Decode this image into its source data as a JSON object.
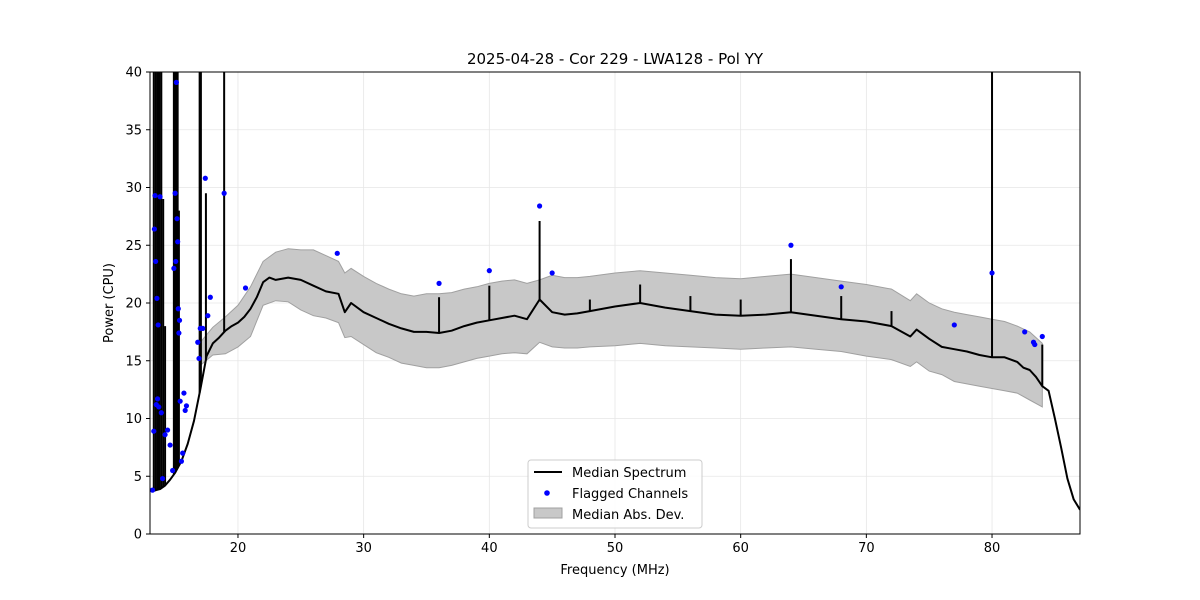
{
  "chart_data": {
    "type": "line",
    "title": "2025-04-28 - Cor 229 - LWA128 - Pol YY",
    "xlabel": "Frequency (MHz)",
    "ylabel": "Power (CPU)",
    "xlim": [
      13,
      87
    ],
    "ylim": [
      0,
      40
    ],
    "xticks": [
      20,
      30,
      40,
      50,
      60,
      70,
      80
    ],
    "xtick_labels": [
      "20",
      "30",
      "40",
      "50",
      "60",
      "70",
      "80"
    ],
    "yticks": [
      0,
      5,
      10,
      15,
      20,
      25,
      30,
      35,
      40
    ],
    "ytick_labels": [
      "0",
      "5",
      "10",
      "15",
      "20",
      "25",
      "30",
      "35",
      "40"
    ],
    "grid": true,
    "legend": {
      "position": "lower-center",
      "entries": [
        "Median Spectrum",
        "Flagged Channels",
        "Median Abs. Dev."
      ]
    },
    "colors": {
      "median_line": "#000000",
      "flagged_points": "#0000ff",
      "mad_band": "#c8c8c8",
      "mad_edge": "#a0a0a0",
      "grid": "#e6e6e6"
    },
    "series": [
      {
        "name": "Median Spectrum",
        "x": [
          13.2,
          13.5,
          13.8,
          14.2,
          14.6,
          15.0,
          15.5,
          16.0,
          16.5,
          17.0,
          17.5,
          18.0,
          18.5,
          19.0,
          19.5,
          20.0,
          20.5,
          21.0,
          21.5,
          22.0,
          22.5,
          23.0,
          24.0,
          25.0,
          26.0,
          27.0,
          28.0,
          28.5,
          29.0,
          30.0,
          31.0,
          32.0,
          33.0,
          34.0,
          35.0,
          36.0,
          37.0,
          38.0,
          39.0,
          40.0,
          41.0,
          42.0,
          43.0,
          44.0,
          45.0,
          46.0,
          47.0,
          48.0,
          50.0,
          52.0,
          54.0,
          56.0,
          58.0,
          60.0,
          62.0,
          64.0,
          66.0,
          68.0,
          70.0,
          72.0,
          73.5,
          74.0,
          75.0,
          76.0,
          77.0,
          78.0,
          79.0,
          80.0,
          81.0,
          82.0,
          82.5,
          83.0,
          83.5,
          84.0,
          84.5,
          85.0,
          85.5,
          86.0,
          86.5,
          87.0
        ],
        "y": [
          3.7,
          3.8,
          3.9,
          4.2,
          4.7,
          5.3,
          6.3,
          7.8,
          9.8,
          12.5,
          15.4,
          16.5,
          17.0,
          17.6,
          18.0,
          18.3,
          18.8,
          19.5,
          20.5,
          21.8,
          22.2,
          22.0,
          22.2,
          22.0,
          21.5,
          21.0,
          20.8,
          19.2,
          20.0,
          19.2,
          18.7,
          18.2,
          17.8,
          17.5,
          17.5,
          17.4,
          17.6,
          18.0,
          18.3,
          18.5,
          18.7,
          18.9,
          18.6,
          20.3,
          19.2,
          19.0,
          19.1,
          19.3,
          19.7,
          20.0,
          19.6,
          19.3,
          19.0,
          18.9,
          19.0,
          19.2,
          18.9,
          18.6,
          18.4,
          18.0,
          17.1,
          17.7,
          16.9,
          16.2,
          16.0,
          15.8,
          15.5,
          15.3,
          15.3,
          14.9,
          14.4,
          14.2,
          13.6,
          12.8,
          12.4,
          10.0,
          7.5,
          4.8,
          3.0,
          2.1
        ]
      },
      {
        "name": "Median Abs. Dev.",
        "x": [
          17.0,
          18.0,
          19.0,
          20.0,
          21.0,
          22.0,
          23.0,
          24.0,
          25.0,
          26.0,
          27.0,
          28.0,
          28.5,
          29.0,
          30.0,
          31.0,
          32.0,
          33.0,
          34.0,
          35.0,
          36.0,
          37.0,
          38.0,
          39.0,
          40.0,
          41.0,
          42.0,
          43.0,
          44.0,
          45.0,
          46.0,
          47.0,
          48.0,
          50.0,
          52.0,
          54.0,
          56.0,
          58.0,
          60.0,
          62.0,
          64.0,
          66.0,
          68.0,
          70.0,
          72.0,
          73.5,
          74.0,
          75.0,
          76.0,
          77.0,
          78.0,
          79.0,
          80.0,
          81.0,
          82.0,
          83.0,
          84.0
        ],
        "upper": [
          16.6,
          17.9,
          18.8,
          19.8,
          21.4,
          23.6,
          24.4,
          24.7,
          24.6,
          24.6,
          24.1,
          23.6,
          22.6,
          23.0,
          22.3,
          21.7,
          21.2,
          20.8,
          20.6,
          20.8,
          20.8,
          20.9,
          21.2,
          21.4,
          21.7,
          21.9,
          22.0,
          21.7,
          22.0,
          22.4,
          22.2,
          22.2,
          22.3,
          22.6,
          22.8,
          22.6,
          22.4,
          22.2,
          22.1,
          22.3,
          22.5,
          22.2,
          21.9,
          21.6,
          21.2,
          20.2,
          20.8,
          20.0,
          19.5,
          19.2,
          19.0,
          18.8,
          18.6,
          18.4,
          18.0,
          17.5,
          16.5
        ],
        "lower": [
          14.6,
          15.5,
          15.6,
          16.2,
          17.1,
          19.8,
          20.2,
          20.1,
          19.4,
          18.9,
          18.7,
          18.3,
          17.0,
          17.1,
          16.4,
          15.7,
          15.3,
          14.8,
          14.6,
          14.4,
          14.4,
          14.6,
          14.9,
          15.2,
          15.4,
          15.6,
          15.7,
          15.6,
          16.6,
          16.2,
          16.1,
          16.1,
          16.2,
          16.3,
          16.5,
          16.3,
          16.2,
          16.1,
          16.0,
          16.1,
          16.2,
          16.0,
          15.8,
          15.4,
          15.1,
          14.5,
          14.9,
          14.1,
          13.8,
          13.2,
          13.0,
          12.8,
          12.6,
          12.4,
          12.2,
          11.6,
          11.0
        ]
      },
      {
        "name": "Spikes",
        "x": [
          13.3,
          13.45,
          13.6,
          13.75,
          13.9,
          14.05,
          14.2,
          14.9,
          15.0,
          15.1,
          15.2,
          15.3,
          16.95,
          17.05,
          17.45,
          18.9,
          36.0,
          40.0,
          44.0,
          48.0,
          52.0,
          56.0,
          60.0,
          64.0,
          68.0,
          72.0,
          80.0,
          84.0
        ],
        "y": [
          40,
          40,
          40,
          40,
          40,
          29.0,
          18.0,
          40,
          40,
          40,
          40,
          28.0,
          40,
          40,
          29.5,
          40,
          20.5,
          21.5,
          27.1,
          20.3,
          21.6,
          20.6,
          20.3,
          23.8,
          20.6,
          19.3,
          40,
          16.4
        ]
      },
      {
        "name": "Flagged Channels",
        "x": [
          13.2,
          13.3,
          13.35,
          13.4,
          13.45,
          13.5,
          13.55,
          13.6,
          13.65,
          13.7,
          13.8,
          13.9,
          14.0,
          14.2,
          14.4,
          14.6,
          14.8,
          14.9,
          15.0,
          15.05,
          15.1,
          15.15,
          15.2,
          15.25,
          15.3,
          15.35,
          15.4,
          15.5,
          15.6,
          15.7,
          15.8,
          15.9,
          16.8,
          16.9,
          17.0,
          17.2,
          17.4,
          17.6,
          17.8,
          18.9,
          20.6,
          27.9,
          36.0,
          40.0,
          44.0,
          45.0,
          64.0,
          68.0,
          77.0,
          80.0,
          82.6,
          83.3,
          83.4,
          84.0
        ],
        "y": [
          3.8,
          8.9,
          26.4,
          29.3,
          23.6,
          11.2,
          20.4,
          11.7,
          18.1,
          11.0,
          29.2,
          10.5,
          4.8,
          8.6,
          9.0,
          7.7,
          5.5,
          23.0,
          29.5,
          23.6,
          39.1,
          27.3,
          25.3,
          19.5,
          17.4,
          18.5,
          11.5,
          6.3,
          7.0,
          12.2,
          10.7,
          11.1,
          16.6,
          15.2,
          17.8,
          17.8,
          30.8,
          18.9,
          20.5,
          29.5,
          21.3,
          24.3,
          21.7,
          22.8,
          28.4,
          22.6,
          25.0,
          21.4,
          18.1,
          22.6,
          17.5,
          16.6,
          16.4,
          17.1
        ]
      }
    ]
  }
}
